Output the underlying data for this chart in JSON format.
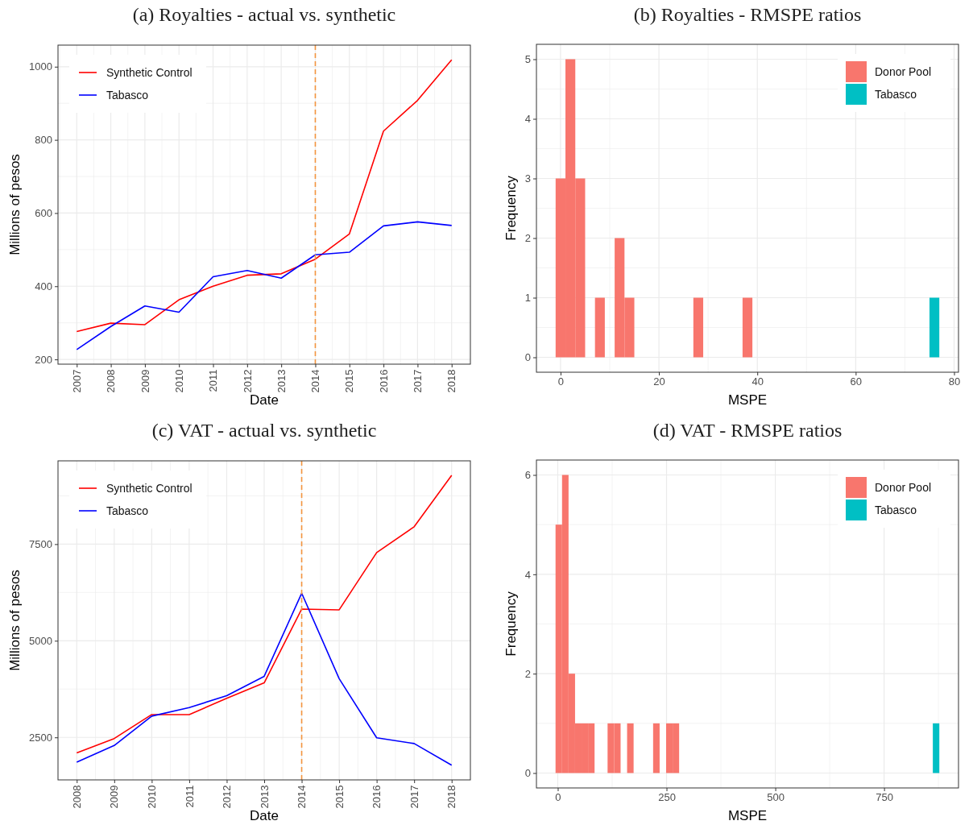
{
  "chart_data": [
    {
      "type": "line",
      "title": "(a) Royalties - actual vs. synthetic",
      "xlabel": "Date",
      "ylabel": "Millions of pesos",
      "x": [
        2007,
        2008,
        2009,
        2010,
        2011,
        2012,
        2013,
        2014,
        2015,
        2016,
        2017,
        2018
      ],
      "series": [
        {
          "name": "Synthetic Control",
          "color": "#ff0000",
          "values": [
            276,
            299,
            295,
            363,
            400,
            430,
            434,
            474,
            543,
            824,
            908,
            1019
          ]
        },
        {
          "name": "Tabasco",
          "color": "#0000ff",
          "values": [
            227,
            290,
            346,
            329,
            426,
            443,
            422,
            486,
            493,
            565,
            576,
            566
          ]
        }
      ],
      "xlim": [
        2006.45,
        2018.55
      ],
      "xticks": [
        2007,
        2008,
        2009,
        2010,
        2011,
        2012,
        2013,
        2014,
        2015,
        2016,
        2017,
        2018
      ],
      "ylim": [
        187,
        1059
      ],
      "yticks": [
        200,
        400,
        600,
        800,
        1000
      ],
      "grid": true,
      "legend": "top left",
      "ref_lines": [
        {
          "axis": "x",
          "value": 2014,
          "color": "#f4953f",
          "line_style": "dashed"
        }
      ]
    },
    {
      "type": "histogram",
      "title": "(b) Royalties - RMSPE ratios",
      "xlabel": "MSPE",
      "ylabel": "Frequency",
      "bins": [
        -1,
        1,
        3,
        5,
        7,
        9,
        11,
        13,
        15,
        17,
        19,
        21,
        23,
        25,
        27,
        29,
        31,
        33,
        35,
        37,
        39,
        41,
        43,
        45,
        47,
        49,
        51,
        53,
        55,
        57,
        59,
        61,
        63,
        65,
        67,
        69,
        71,
        73,
        75,
        77
      ],
      "series": [
        {
          "name": "Donor Pool",
          "color": "#f8766d",
          "values": [
            3,
            5,
            3,
            0,
            1,
            0,
            2,
            1,
            0,
            0,
            0,
            0,
            0,
            0,
            1,
            0,
            0,
            0,
            0,
            1,
            0,
            0,
            0,
            0,
            0,
            0,
            0,
            0,
            0,
            0,
            0,
            0,
            0,
            0,
            0,
            0,
            0,
            0,
            0
          ]
        },
        {
          "name": "Tabasco",
          "color": "#00bfc4",
          "values": [
            0,
            0,
            0,
            0,
            0,
            0,
            0,
            0,
            0,
            0,
            0,
            0,
            0,
            0,
            0,
            0,
            0,
            0,
            0,
            0,
            0,
            0,
            0,
            0,
            0,
            0,
            0,
            0,
            0,
            0,
            0,
            0,
            0,
            0,
            0,
            0,
            0,
            0,
            1
          ]
        }
      ],
      "xlim": [
        -4.9,
        80.9
      ],
      "xticks": [
        0,
        20,
        40,
        60,
        80
      ],
      "ylim": [
        -0.25,
        5.25
      ],
      "yticks": [
        0,
        1,
        2,
        3,
        4,
        5
      ],
      "grid": true,
      "legend": "top right"
    },
    {
      "type": "line",
      "title": "(c) VAT - actual vs. synthetic",
      "xlabel": "Date",
      "ylabel": "Millions of pesos",
      "x": [
        2008,
        2009,
        2010,
        2011,
        2012,
        2013,
        2014,
        2015,
        2016,
        2017,
        2018
      ],
      "series": [
        {
          "name": "Synthetic Control",
          "color": "#ff0000",
          "values": [
            2100,
            2470,
            3090,
            3090,
            3510,
            3910,
            5820,
            5800,
            7280,
            7950,
            9280
          ]
        },
        {
          "name": "Tabasco",
          "color": "#0000ff",
          "values": [
            1860,
            2290,
            3050,
            3270,
            3580,
            4080,
            6230,
            4020,
            2490,
            2340,
            1780
          ]
        }
      ],
      "xlim": [
        2007.5,
        2018.5
      ],
      "xticks": [
        2008,
        2009,
        2010,
        2011,
        2012,
        2013,
        2014,
        2015,
        2016,
        2017,
        2018
      ],
      "ylim": [
        1400,
        9655
      ],
      "yticks": [
        2500,
        5000,
        7500
      ],
      "grid": true,
      "legend": "top left",
      "ref_lines": [
        {
          "axis": "x",
          "value": 2014,
          "color": "#f4953f",
          "line_style": "dashed"
        }
      ]
    },
    {
      "type": "histogram",
      "title": "(d) VAT - RMSPE ratios",
      "xlabel": "MSPE",
      "ylabel": "Frequency",
      "bins": [
        -5.1,
        9.85,
        24.8,
        39.75,
        54.7,
        69.65,
        84.6,
        99.55,
        114.5,
        129.45,
        144.4,
        159.35,
        174.3,
        189.25,
        204.2,
        219.15,
        234.1,
        249.05,
        264,
        278.95,
        293.9,
        308.85,
        323.8,
        338.75,
        353.7,
        368.65,
        383.6,
        398.55,
        413.5,
        428.45,
        443.4,
        458.35,
        473.3,
        488.25,
        503.2,
        518.15,
        533.1,
        548.05,
        563,
        577.95,
        592.9,
        607.85,
        622.8,
        637.75,
        652.7,
        667.65,
        682.6,
        697.55,
        712.5,
        727.45,
        742.4,
        757.35,
        772.3,
        787.25,
        802.2,
        817.15,
        832.1,
        847.05,
        862,
        876.95
      ],
      "series": [
        {
          "name": "Donor Pool",
          "color": "#f8766d",
          "values": [
            5,
            6,
            2,
            1,
            1,
            1,
            0,
            0,
            1,
            1,
            0,
            1,
            0,
            0,
            0,
            1,
            0,
            1,
            1,
            0,
            0,
            0,
            0,
            0,
            0,
            0,
            0,
            0,
            0,
            0,
            0,
            0,
            0,
            0,
            0,
            0,
            0,
            0,
            0,
            0,
            0,
            0,
            0,
            0,
            0,
            0,
            0,
            0,
            0,
            0,
            0,
            0,
            0,
            0,
            0,
            0,
            0,
            0,
            0
          ]
        },
        {
          "name": "Tabasco",
          "color": "#00bfc4",
          "values": [
            0,
            0,
            0,
            0,
            0,
            0,
            0,
            0,
            0,
            0,
            0,
            0,
            0,
            0,
            0,
            0,
            0,
            0,
            0,
            0,
            0,
            0,
            0,
            0,
            0,
            0,
            0,
            0,
            0,
            0,
            0,
            0,
            0,
            0,
            0,
            0,
            0,
            0,
            0,
            0,
            0,
            0,
            0,
            0,
            0,
            0,
            0,
            0,
            0,
            0,
            0,
            0,
            0,
            0,
            0,
            0,
            0,
            0,
            1
          ]
        }
      ],
      "xlim": [
        -49,
        921
      ],
      "xticks": [
        0,
        250,
        500,
        750
      ],
      "ylim": [
        -0.3,
        6.3
      ],
      "yticks": [
        0,
        2,
        4,
        6
      ],
      "grid": true,
      "legend": "top right"
    }
  ]
}
